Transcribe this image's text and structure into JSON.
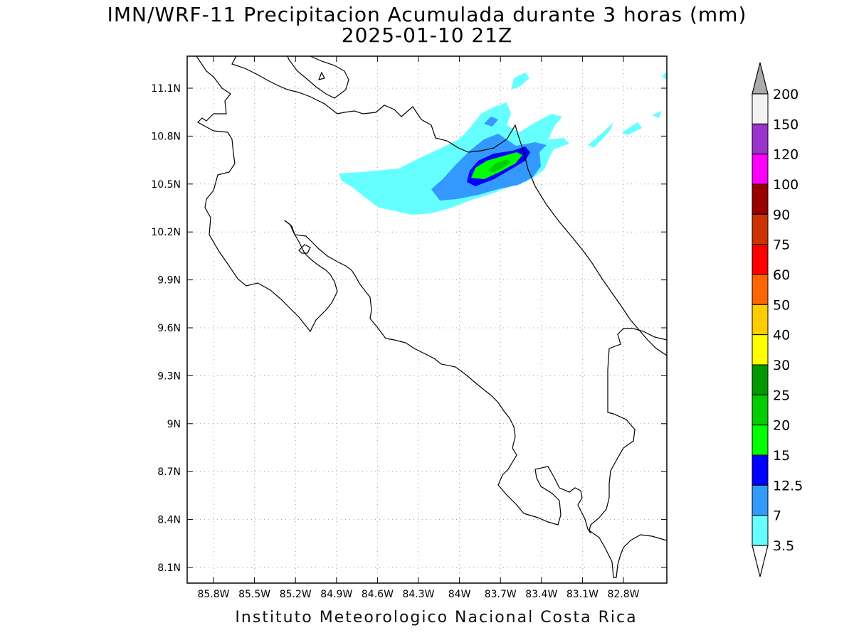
{
  "title": "IMN/WRF-11 Precipitacion Acumulada durante 3 horas (mm)",
  "subtitle": "2025-01-10 21Z",
  "footer": "Instituto Meteorologico Nacional Costa Rica",
  "map": {
    "lon_range": [
      -86.05,
      -82.5
    ],
    "lat_range": [
      8.0,
      11.3
    ],
    "lon_ticks": [
      "85.8W",
      "85.5W",
      "85.2W",
      "84.9W",
      "84.6W",
      "84.3W",
      "84W",
      "83.7W",
      "83.4W",
      "83.1W",
      "82.8W"
    ],
    "lat_ticks": [
      "11.1N",
      "10.8N",
      "10.5N",
      "10.2N",
      "9.9N",
      "9.6N",
      "9.3N",
      "9N",
      "8.7N",
      "8.4N",
      "8.1N"
    ],
    "grid": "dotted"
  },
  "colorbar": {
    "labels": [
      "200",
      "150",
      "120",
      "100",
      "90",
      "75",
      "60",
      "50",
      "40",
      "30",
      "25",
      "20",
      "15",
      "12.5",
      "7",
      "3.5"
    ],
    "colors": [
      "#f2f2f2",
      "#9933cc",
      "#ff00ff",
      "#990000",
      "#cc3300",
      "#ff0000",
      "#ff6600",
      "#ffcc00",
      "#ffff00",
      "#009900",
      "#00cc00",
      "#00ff00",
      "#0000ff",
      "#3399ff",
      "#66ffff"
    ],
    "top_arrow_color": "#aaaaaa",
    "bottom_arrow_color": "#ffffff"
  },
  "precip_colors": {
    "light": "#66ffff",
    "moderate": "#3399ff",
    "heavy": "#0000ff",
    "green": "#00ff00",
    "dark_green": "#00cc00"
  }
}
